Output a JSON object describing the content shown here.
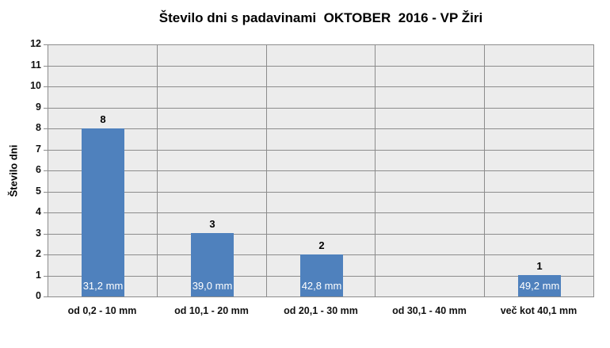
{
  "chart_data": {
    "type": "bar",
    "title": "Število dni s padavinami  OKTOBER  2016 - VP Žiri",
    "ylabel": "Število dni",
    "xlabel": "",
    "categories": [
      "od 0,2 - 10 mm",
      "od 10,1 - 20 mm",
      "od 20,1 - 30 mm",
      "od 30,1 - 40 mm",
      "več kot 40,1 mm"
    ],
    "values": [
      8,
      3,
      2,
      0,
      1
    ],
    "bar_inner_labels": [
      "31,2 mm",
      "39,0 mm",
      "42,8 mm",
      "",
      "49,2 mm"
    ],
    "ylim": [
      0,
      12
    ],
    "ytick_step": 1,
    "grid": "horizontal-and-vertical-category-separators",
    "legend": "none",
    "colors": {
      "bar": "#4F81BD",
      "plot_background": "#ECECEC",
      "gridline": "#8C8C8C",
      "axis": "#8C8C8C",
      "value_label": "#000000",
      "inner_label": "#FFFFFF",
      "title": "#000000"
    }
  }
}
